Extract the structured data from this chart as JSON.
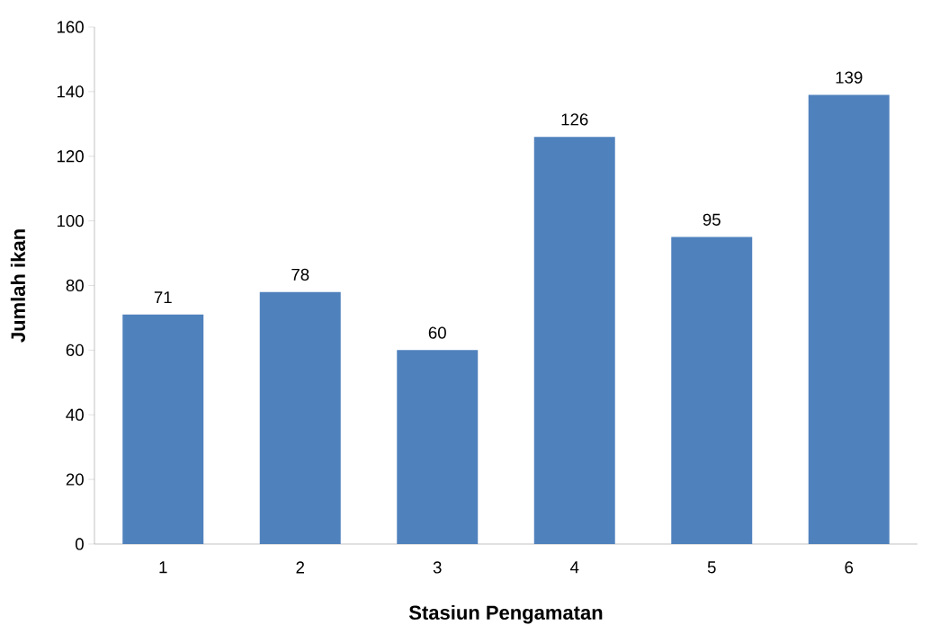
{
  "chart_data": {
    "type": "bar",
    "xlabel": "Stasiun Pengamatan",
    "ylabel": "Jumlah ikan",
    "categories": [
      "1",
      "2",
      "3",
      "4",
      "5",
      "6"
    ],
    "values": [
      71,
      78,
      60,
      126,
      95,
      139
    ],
    "color": "#4f81bd",
    "ylim": [
      0,
      160
    ],
    "yticks": [
      0,
      20,
      40,
      60,
      80,
      100,
      120,
      140,
      160
    ],
    "data_labels": true
  }
}
